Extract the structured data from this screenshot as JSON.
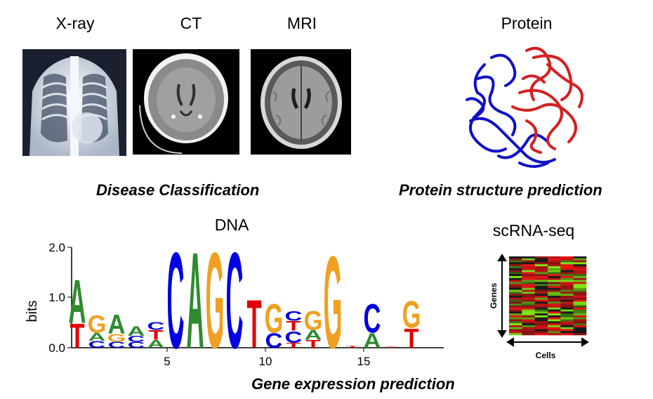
{
  "modalities": {
    "xray": "X-ray",
    "ct": "CT",
    "mri": "MRI",
    "protein": "Protein",
    "dna": "DNA",
    "scrna": "scRNA-seq"
  },
  "captions": {
    "disease": "Disease Classification",
    "protein": "Protein structure prediction",
    "gene": "Gene expression prediction"
  },
  "logo": {
    "ylabel": "bits",
    "yticks": [
      "0.0",
      "1.0",
      "2.0"
    ],
    "xticks": [
      "5",
      "10",
      "15"
    ],
    "colors": {
      "A": "#2e8b2e",
      "C": "#0000e0",
      "G": "#f0a020",
      "T": "#e00000"
    }
  },
  "heatmap": {
    "ylabel": "Genes",
    "xlabel": "Cells"
  }
}
